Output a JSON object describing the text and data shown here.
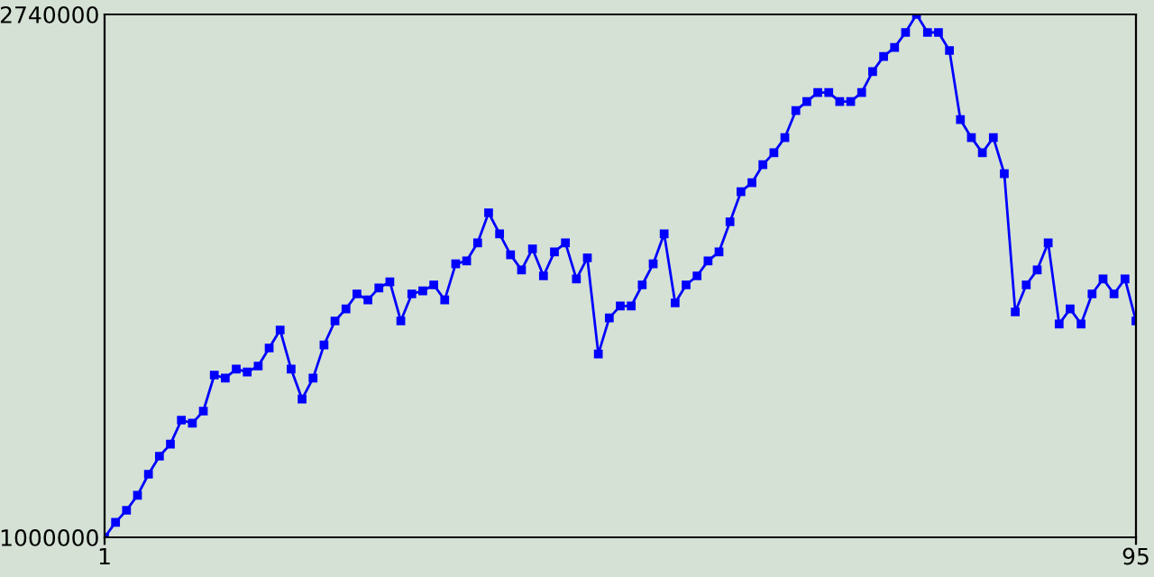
{
  "chart_data": {
    "type": "line",
    "x": [
      1,
      2,
      3,
      4,
      5,
      6,
      7,
      8,
      9,
      10,
      11,
      12,
      13,
      14,
      15,
      16,
      17,
      18,
      19,
      20,
      21,
      22,
      23,
      24,
      25,
      26,
      27,
      28,
      29,
      30,
      31,
      32,
      33,
      34,
      35,
      36,
      37,
      38,
      39,
      40,
      41,
      42,
      43,
      44,
      45,
      46,
      47,
      48,
      49,
      50,
      51,
      52,
      53,
      54,
      55,
      56,
      57,
      58,
      59,
      60,
      61,
      62,
      63,
      64,
      65,
      66,
      67,
      68,
      69,
      70,
      71,
      72,
      73,
      74,
      75,
      76,
      77,
      78,
      79,
      80,
      81,
      82,
      83,
      84,
      85,
      86,
      87,
      88,
      89,
      90,
      91,
      92,
      93,
      94,
      95
    ],
    "series": [
      {
        "color": "#0000ff",
        "values": [
          1000000,
          1050000,
          1090000,
          1140000,
          1210000,
          1270000,
          1310000,
          1390000,
          1380000,
          1420000,
          1540000,
          1530000,
          1560000,
          1550000,
          1570000,
          1630000,
          1690000,
          1560000,
          1460000,
          1530000,
          1640000,
          1720000,
          1760000,
          1810000,
          1790000,
          1830000,
          1850000,
          1720000,
          1810000,
          1820000,
          1840000,
          1790000,
          1910000,
          1920000,
          1980000,
          2080000,
          2010000,
          1940000,
          1890000,
          1960000,
          1870000,
          1950000,
          1980000,
          1860000,
          1930000,
          1610000,
          1730000,
          1770000,
          1770000,
          1840000,
          1910000,
          2010000,
          1780000,
          1840000,
          1870000,
          1920000,
          1950000,
          2050000,
          2150000,
          2180000,
          2240000,
          2280000,
          2330000,
          2420000,
          2450000,
          2480000,
          2480000,
          2450000,
          2450000,
          2480000,
          2550000,
          2600000,
          2630000,
          2680000,
          2740000,
          2680000,
          2680000,
          2620000,
          2390000,
          2330000,
          2280000,
          2330000,
          2210000,
          1750000,
          1840000,
          1890000,
          1980000,
          1710000,
          1760000,
          1710000,
          1810000,
          1860000,
          1810000,
          1860000,
          1720000
        ]
      }
    ],
    "xlim": [
      1,
      95
    ],
    "ylim": [
      1000000,
      2740000
    ],
    "xticks": [
      1,
      95
    ],
    "yticks": [
      1000000,
      2740000
    ],
    "legend": false,
    "marker": "square",
    "line_style": "solid"
  }
}
